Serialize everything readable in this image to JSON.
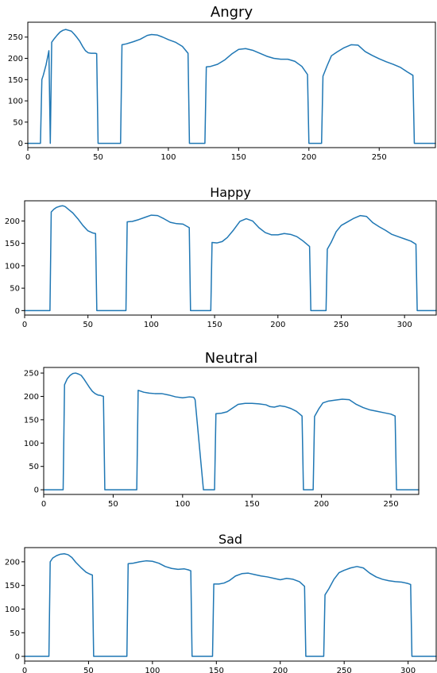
{
  "chart_data": [
    {
      "type": "line",
      "title": "Angry",
      "xlabel": "",
      "ylabel": "",
      "xlim": [
        0,
        290
      ],
      "ylim": [
        -10,
        285
      ],
      "xticks": [
        0,
        50,
        100,
        150,
        200,
        250
      ],
      "yticks": [
        0,
        50,
        100,
        150,
        200,
        250
      ],
      "grid": false,
      "color": "#1f77b4",
      "x": [
        0,
        9,
        10,
        11,
        13,
        15,
        16,
        17,
        19,
        21,
        23,
        25,
        27,
        29,
        31,
        33,
        35,
        37,
        39,
        41,
        43,
        45,
        48,
        49,
        50,
        55,
        60,
        66,
        67,
        70,
        75,
        80,
        85,
        88,
        92,
        96,
        100,
        105,
        110,
        114,
        115,
        120,
        126,
        127,
        130,
        135,
        140,
        145,
        150,
        155,
        160,
        165,
        170,
        175,
        180,
        185,
        190,
        195,
        199,
        200,
        205,
        209,
        210,
        213,
        216,
        220,
        225,
        230,
        235,
        240,
        245,
        250,
        255,
        260,
        265,
        270,
        274,
        275,
        280,
        285,
        290
      ],
      "values": [
        0,
        0,
        150,
        160,
        185,
        218,
        0,
        238,
        247,
        255,
        262,
        266,
        268,
        266,
        264,
        257,
        249,
        240,
        228,
        218,
        213,
        212,
        212,
        211,
        0,
        0,
        0,
        0,
        232,
        234,
        239,
        245,
        254,
        256,
        255,
        250,
        244,
        238,
        228,
        212,
        0,
        0,
        0,
        180,
        181,
        186,
        196,
        210,
        221,
        223,
        219,
        212,
        205,
        200,
        198,
        198,
        193,
        181,
        162,
        0,
        0,
        0,
        158,
        183,
        206,
        215,
        225,
        232,
        231,
        216,
        207,
        199,
        192,
        186,
        179,
        168,
        160,
        0,
        0,
        0,
        0
      ]
    },
    {
      "type": "line",
      "title": "Happy",
      "xlabel": "",
      "ylabel": "",
      "xlim": [
        0,
        325
      ],
      "ylim": [
        -10,
        245
      ],
      "xticks": [
        0,
        50,
        100,
        150,
        200,
        250,
        300
      ],
      "yticks": [
        0,
        50,
        100,
        150,
        200
      ],
      "grid": false,
      "color": "#1f77b4",
      "x": [
        0,
        20,
        21,
        23,
        25,
        28,
        30,
        32,
        35,
        38,
        42,
        46,
        50,
        54,
        56,
        57,
        62,
        70,
        80,
        81,
        85,
        90,
        95,
        100,
        105,
        110,
        115,
        120,
        125,
        130,
        131,
        136,
        140,
        147,
        148,
        152,
        156,
        160,
        165,
        170,
        175,
        180,
        185,
        190,
        195,
        200,
        205,
        210,
        215,
        220,
        225,
        226,
        232,
        238,
        239,
        242,
        246,
        250,
        255,
        260,
        265,
        270,
        275,
        280,
        285,
        290,
        295,
        300,
        305,
        309,
        310,
        315,
        320,
        325
      ],
      "values": [
        0,
        0,
        220,
        226,
        230,
        233,
        234,
        232,
        225,
        218,
        205,
        190,
        178,
        173,
        172,
        0,
        0,
        0,
        0,
        198,
        199,
        203,
        208,
        213,
        212,
        205,
        197,
        194,
        193,
        185,
        0,
        0,
        0,
        0,
        152,
        151,
        154,
        163,
        180,
        199,
        205,
        200,
        185,
        174,
        169,
        169,
        172,
        170,
        165,
        155,
        143,
        0,
        0,
        0,
        137,
        152,
        176,
        190,
        198,
        206,
        212,
        210,
        196,
        187,
        179,
        170,
        165,
        160,
        155,
        148,
        0,
        0,
        0,
        0
      ]
    },
    {
      "type": "line",
      "title": "Neutral",
      "xlabel": "",
      "ylabel": "",
      "xlim": [
        0,
        270
      ],
      "ylim": [
        -10,
        262
      ],
      "xticks": [
        0,
        50,
        100,
        150,
        200,
        250
      ],
      "yticks": [
        0,
        50,
        100,
        150,
        200,
        250
      ],
      "grid": false,
      "color": "#1f77b4",
      "x": [
        0,
        14,
        15,
        17,
        19,
        21,
        23,
        25,
        27,
        29,
        31,
        33,
        35,
        37,
        39,
        41,
        43,
        44,
        50,
        60,
        67,
        68,
        72,
        76,
        80,
        85,
        90,
        95,
        100,
        105,
        108,
        109,
        115,
        123,
        124,
        128,
        132,
        136,
        140,
        145,
        150,
        155,
        160,
        163,
        166,
        170,
        174,
        178,
        182,
        186,
        187,
        192,
        194,
        195,
        198,
        201,
        205,
        210,
        215,
        220,
        225,
        230,
        235,
        240,
        245,
        250,
        253,
        254,
        260,
        270
      ],
      "values": [
        0,
        0,
        225,
        238,
        245,
        249,
        250,
        248,
        245,
        237,
        228,
        219,
        211,
        206,
        203,
        202,
        200,
        0,
        0,
        0,
        0,
        213,
        209,
        207,
        206,
        206,
        203,
        199,
        197,
        199,
        198,
        193,
        0,
        0,
        163,
        164,
        167,
        175,
        183,
        185,
        185,
        184,
        182,
        178,
        177,
        180,
        178,
        174,
        168,
        158,
        0,
        0,
        0,
        157,
        173,
        186,
        190,
        192,
        194,
        193,
        183,
        176,
        171,
        168,
        165,
        162,
        158,
        0,
        0,
        0
      ]
    },
    {
      "type": "line",
      "title": "Sad",
      "xlabel": "",
      "ylabel": "",
      "xlim": [
        0,
        322
      ],
      "ylim": [
        -10,
        230
      ],
      "xticks": [
        0,
        50,
        100,
        150,
        200,
        250,
        300
      ],
      "yticks": [
        0,
        50,
        100,
        150,
        200
      ],
      "grid": false,
      "color": "#1f77b4",
      "x": [
        0,
        19,
        20,
        22,
        25,
        28,
        31,
        34,
        37,
        40,
        44,
        48,
        51,
        53,
        54,
        60,
        70,
        80,
        81,
        85,
        90,
        95,
        100,
        105,
        110,
        115,
        120,
        125,
        128,
        130,
        131,
        137,
        147,
        148,
        152,
        156,
        160,
        165,
        170,
        175,
        180,
        185,
        190,
        195,
        200,
        205,
        210,
        215,
        219,
        220,
        226,
        234,
        235,
        238,
        242,
        246,
        250,
        255,
        260,
        265,
        270,
        275,
        280,
        285,
        290,
        295,
        300,
        302,
        303,
        310,
        322
      ],
      "values": [
        0,
        0,
        200,
        208,
        213,
        216,
        217,
        215,
        209,
        199,
        188,
        178,
        174,
        172,
        0,
        0,
        0,
        0,
        196,
        197,
        200,
        202,
        201,
        197,
        190,
        186,
        184,
        185,
        183,
        181,
        0,
        0,
        0,
        153,
        153,
        155,
        160,
        170,
        175,
        176,
        173,
        170,
        168,
        165,
        162,
        165,
        163,
        158,
        148,
        0,
        0,
        0,
        130,
        143,
        163,
        177,
        182,
        187,
        190,
        187,
        176,
        168,
        163,
        160,
        158,
        157,
        154,
        152,
        0,
        0,
        0
      ]
    }
  ]
}
